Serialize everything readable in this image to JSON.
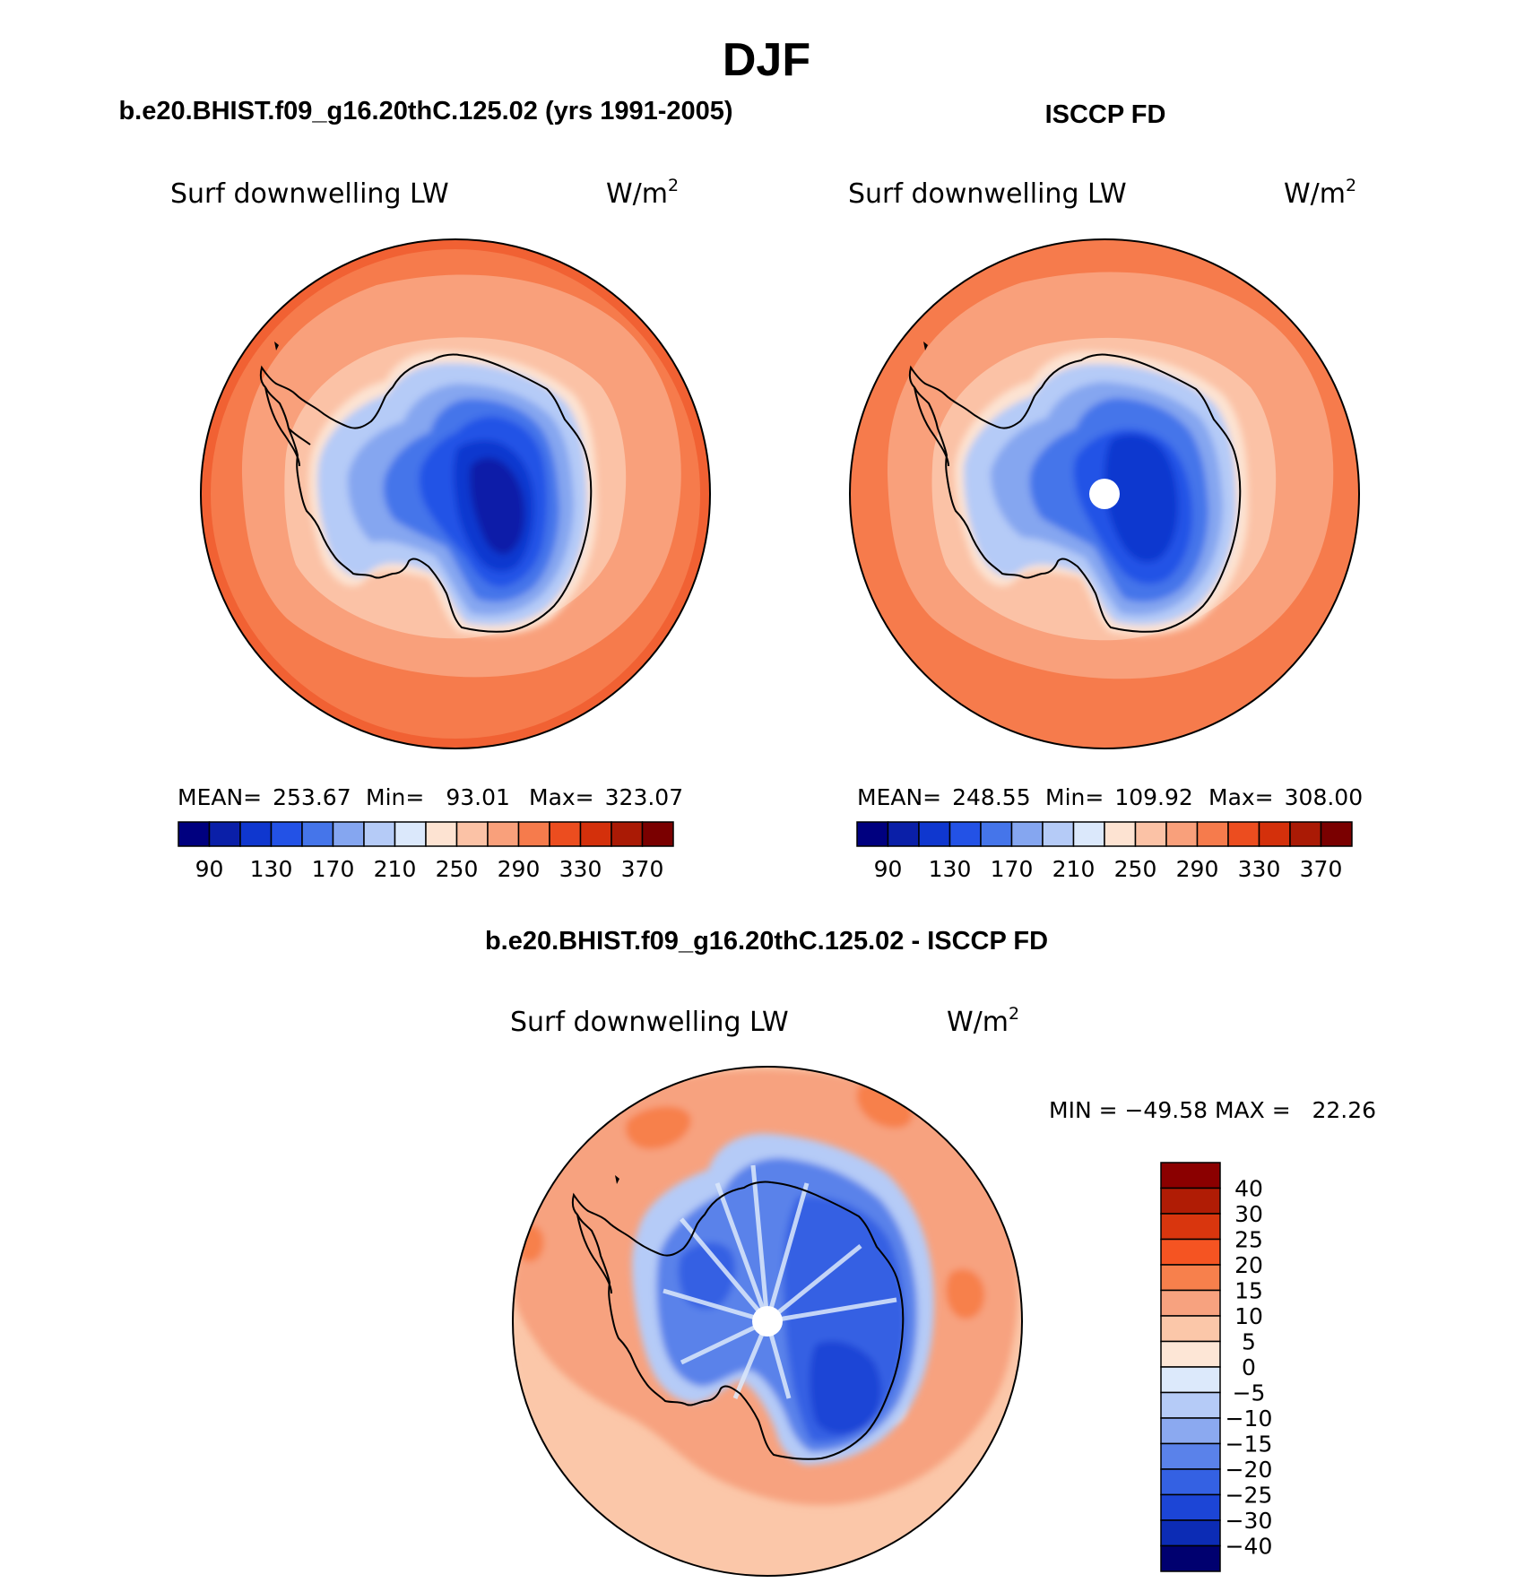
{
  "figure": {
    "season_title": "DJF",
    "panels": [
      {
        "id": "model",
        "header": "b.e20.BHIST.f09_g16.20thC.125.02 (yrs 1991-2005)",
        "variable": "Surf downwelling LW",
        "units_base": "W/m",
        "units_exp": "2",
        "stats": [
          {
            "label": "MEAN=",
            "value": "253.67"
          },
          {
            "label": "Min=",
            "value": "93.01"
          },
          {
            "label": "Max=",
            "value": "323.07"
          }
        ],
        "has_pole_hole": false
      },
      {
        "id": "obs",
        "header": "ISCCP FD",
        "variable": "Surf downwelling LW",
        "units_base": "W/m",
        "units_exp": "2",
        "stats": [
          {
            "label": "MEAN=",
            "value": "248.55"
          },
          {
            "label": "Min=",
            "value": "109.92"
          },
          {
            "label": "Max=",
            "value": "308.00"
          }
        ],
        "has_pole_hole": true
      }
    ],
    "diff_panel": {
      "header": "b.e20.BHIST.f09_g16.20thC.125.02 - ISCCP FD",
      "variable": "Surf downwelling LW",
      "units_base": "W/m",
      "units_exp": "2",
      "minmax_text": "MIN = −49.58 MAX =   22.26"
    },
    "abs_colorbar": {
      "colors": [
        "#00007f",
        "#0a1fa8",
        "#0f37cf",
        "#2352e6",
        "#4575ea",
        "#85a6f0",
        "#b5cbf7",
        "#dbe8fb",
        "#fde3d2",
        "#fbc2a6",
        "#f9a07b",
        "#f67b4c",
        "#ec4d1f",
        "#d4300b",
        "#aa1a05",
        "#7a0000"
      ],
      "labels": [
        "90",
        "130",
        "170",
        "210",
        "250",
        "290",
        "330",
        "370"
      ]
    },
    "diff_colorbar": {
      "colors_top_to_bottom": [
        "#8b0000",
        "#b01c05",
        "#d9360e",
        "#f55422",
        "#f7804c",
        "#f7a27f",
        "#fbc7a9",
        "#fde6d6",
        "#dce9fb",
        "#b5cbf7",
        "#8ba9f0",
        "#5a82ea",
        "#3461e3",
        "#1c45d6",
        "#0c2cb5",
        "#00006f"
      ],
      "labels": [
        "40",
        "30",
        "25",
        "20",
        "15",
        "10",
        "5",
        "0",
        "−5",
        "−10",
        "−15",
        "−20",
        "−25",
        "−30",
        "−40"
      ]
    }
  }
}
